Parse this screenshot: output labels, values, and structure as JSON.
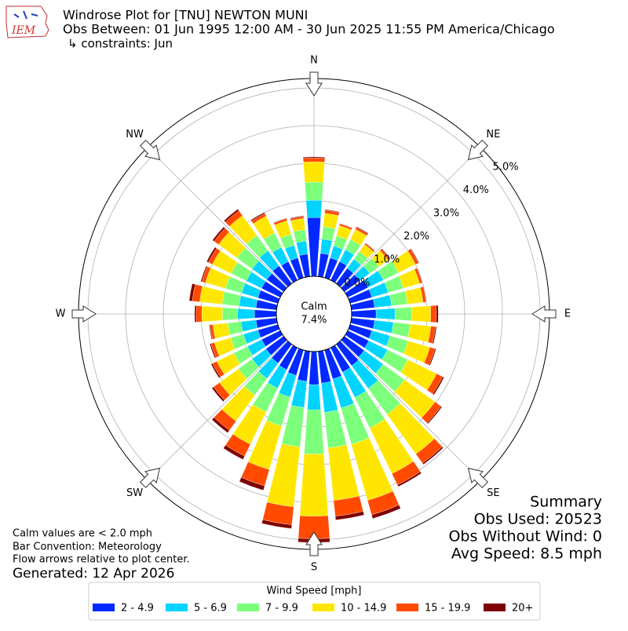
{
  "chart_data": {
    "type": "windrose",
    "title": "Windrose Plot for [TNU] NEWTON MUNI",
    "subtitle": "Obs Between: 01 Jun 1995 12:00 AM - 30 Jun 2025 11:55 PM America/Chicago",
    "constraints": "↳ constraints: Jun",
    "logo": "IEM",
    "compass": [
      "N",
      "NE",
      "E",
      "SE",
      "S",
      "SW",
      "W",
      "NW"
    ],
    "x": [
      0,
      10,
      20,
      30,
      40,
      50,
      60,
      70,
      80,
      90,
      100,
      110,
      120,
      130,
      140,
      150,
      160,
      170,
      180,
      190,
      200,
      210,
      220,
      230,
      240,
      250,
      260,
      270,
      280,
      290,
      300,
      310,
      320,
      330,
      340,
      350
    ],
    "rlim": [
      0,
      5.25
    ],
    "rticks": [
      {
        "value": 0,
        "label": "0.0%"
      },
      {
        "value": 1,
        "label": "1.0%"
      },
      {
        "value": 2,
        "label": "2.0%"
      },
      {
        "value": 3,
        "label": "3.0%"
      },
      {
        "value": 4,
        "label": "4.0%"
      },
      {
        "value": 5,
        "label": "5.0%"
      }
    ],
    "calm": {
      "label": "Calm",
      "value": 7.4,
      "value_label": "7.4%"
    },
    "legend_title": "Wind Speed [mph]",
    "series": [
      {
        "name": "2 - 4.9",
        "color": "#0028ff",
        "values": [
          1.56,
          0.62,
          0.55,
          0.55,
          0.5,
          0.5,
          0.6,
          0.6,
          0.62,
          0.65,
          0.62,
          0.6,
          0.62,
          0.65,
          0.7,
          0.72,
          0.8,
          0.85,
          0.88,
          0.8,
          0.7,
          0.65,
          0.62,
          0.58,
          0.55,
          0.55,
          0.55,
          0.58,
          0.55,
          0.55,
          0.55,
          0.55,
          0.58,
          0.55,
          0.55,
          0.6
        ]
      },
      {
        "name": "5 - 6.9",
        "color": "#00d4ff",
        "values": [
          0.46,
          0.38,
          0.33,
          0.35,
          0.3,
          0.33,
          0.45,
          0.45,
          0.45,
          0.5,
          0.5,
          0.5,
          0.55,
          0.62,
          0.75,
          0.75,
          0.8,
          0.78,
          0.67,
          0.7,
          0.6,
          0.55,
          0.5,
          0.45,
          0.42,
          0.4,
          0.4,
          0.45,
          0.45,
          0.45,
          0.45,
          0.48,
          0.5,
          0.42,
          0.35,
          0.35
        ]
      },
      {
        "name": "7 - 9.9",
        "color": "#7cff7a",
        "values": [
          0.48,
          0.33,
          0.28,
          0.3,
          0.25,
          0.3,
          0.45,
          0.42,
          0.42,
          0.45,
          0.45,
          0.5,
          0.6,
          0.7,
          0.85,
          0.9,
          1.0,
          0.95,
          1.17,
          1.05,
          0.8,
          0.7,
          0.55,
          0.45,
          0.4,
          0.35,
          0.35,
          0.4,
          0.45,
          0.45,
          0.45,
          0.5,
          0.5,
          0.42,
          0.3,
          0.3
        ]
      },
      {
        "name": "10 - 14.9",
        "color": "#ffe600",
        "values": [
          0.54,
          0.36,
          0.28,
          0.3,
          0.23,
          0.3,
          0.5,
          0.45,
          0.42,
          0.5,
          0.55,
          0.6,
          0.85,
          1.0,
          1.3,
          1.35,
          1.55,
          1.4,
          1.65,
          1.6,
          1.2,
          0.95,
          0.85,
          0.62,
          0.5,
          0.45,
          0.4,
          0.55,
          0.6,
          0.55,
          0.55,
          0.6,
          0.65,
          0.5,
          0.38,
          0.3
        ]
      },
      {
        "name": "15 - 19.9",
        "color": "#ff4a00",
        "values": [
          0.1,
          0.08,
          0.05,
          0.06,
          0.04,
          0.05,
          0.08,
          0.07,
          0.08,
          0.15,
          0.12,
          0.14,
          0.18,
          0.2,
          0.3,
          0.33,
          0.4,
          0.42,
          0.6,
          0.48,
          0.45,
          0.35,
          0.3,
          0.2,
          0.13,
          0.1,
          0.08,
          0.15,
          0.2,
          0.1,
          0.12,
          0.15,
          0.16,
          0.08,
          0.06,
          0.05
        ]
      },
      {
        "name": "20+",
        "color": "#7f0000",
        "values": [
          0.03,
          0.02,
          0.01,
          0.02,
          0.01,
          0.02,
          0.02,
          0.01,
          0.01,
          0.05,
          0.03,
          0.03,
          0.04,
          0.03,
          0.04,
          0.05,
          0.1,
          0.1,
          0.1,
          0.1,
          0.12,
          0.1,
          0.08,
          0.05,
          0.04,
          0.03,
          0.02,
          0.04,
          0.08,
          0.03,
          0.05,
          0.05,
          0.05,
          0.03,
          0.01,
          0.02
        ]
      }
    ],
    "notes": [
      "Calm values are < 2.0 mph",
      "Bar Convention: Meteorology",
      "Flow arrows relative to plot center."
    ],
    "generated": "Generated: 12 Apr 2026",
    "summary": [
      "Summary",
      "Obs Used: 20523",
      "Obs Without Wind: 0",
      "Avg Speed: 8.5 mph"
    ]
  }
}
